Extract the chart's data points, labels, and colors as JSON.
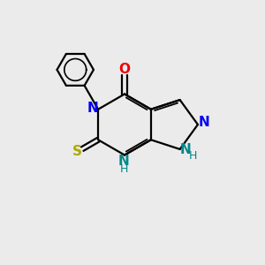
{
  "bg_color": "#ebebeb",
  "bond_color": "#000000",
  "N_color": "#0000ee",
  "O_color": "#ee0000",
  "S_color": "#aaaa00",
  "NH_color": "#008888",
  "lw": 1.6,
  "lw_inner": 1.3,
  "lw_circle": 1.2,
  "figsize": [
    3.0,
    3.0
  ],
  "dpi": 100,
  "xlim": [
    0,
    10
  ],
  "ylim": [
    0,
    10
  ],
  "bl": 1.15
}
